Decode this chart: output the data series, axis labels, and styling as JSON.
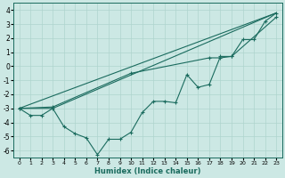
{
  "xlabel": "Humidex (Indice chaleur)",
  "xlim": [
    -0.5,
    23.5
  ],
  "ylim": [
    -6.5,
    4.5
  ],
  "yticks": [
    -6,
    -5,
    -4,
    -3,
    -2,
    -1,
    0,
    1,
    2,
    3,
    4
  ],
  "xticks": [
    0,
    1,
    2,
    3,
    4,
    5,
    6,
    7,
    8,
    9,
    10,
    11,
    12,
    13,
    14,
    15,
    16,
    17,
    18,
    19,
    20,
    21,
    22,
    23
  ],
  "bg_color": "#cce8e4",
  "line_color": "#1a6b5e",
  "grid_color": "#aed4ce",
  "line1_x": [
    0,
    1,
    2,
    3,
    4,
    5,
    6,
    7,
    8,
    9,
    10,
    11,
    12,
    13,
    14,
    15,
    16,
    17,
    18,
    19,
    20,
    21,
    22,
    23
  ],
  "line1_y": [
    -3.0,
    -3.5,
    -3.5,
    -3.0,
    -4.3,
    -4.8,
    -5.1,
    -6.3,
    -5.2,
    -5.2,
    -4.7,
    -3.3,
    -2.5,
    -2.5,
    -2.6,
    -0.6,
    -1.5,
    -1.3,
    0.7,
    0.7,
    1.9,
    1.9,
    3.2,
    3.8
  ],
  "line2_x": [
    0,
    3,
    23
  ],
  "line2_y": [
    -3.0,
    -3.0,
    3.8
  ],
  "line3_x": [
    0,
    23
  ],
  "line3_y": [
    -3.0,
    3.8
  ],
  "line4_x": [
    0,
    3,
    10,
    17,
    18,
    19,
    23
  ],
  "line4_y": [
    -3.0,
    -2.9,
    -0.5,
    0.6,
    0.6,
    0.7,
    3.5
  ]
}
